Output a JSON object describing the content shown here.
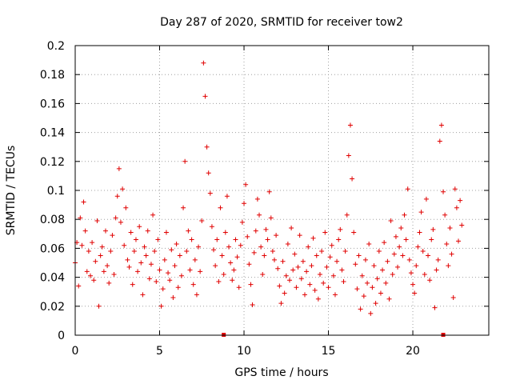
{
  "chart_data": {
    "type": "scatter",
    "title": "Day 287 of 2020, SRMTID for receiver tow2",
    "xlabel": "GPS time / hours",
    "ylabel": "SRMTID / TECUs",
    "xlim": [
      0,
      24.5
    ],
    "ylim": [
      0,
      0.2
    ],
    "x_ticks": [
      0,
      5,
      10,
      15,
      20
    ],
    "x_tick_labels": [
      "0",
      "5",
      "10",
      "15",
      "20"
    ],
    "y_ticks": [
      0,
      0.02,
      0.04,
      0.06,
      0.08,
      0.1,
      0.12,
      0.14,
      0.16,
      0.18,
      0.2
    ],
    "y_tick_labels": [
      "0",
      "0.02",
      "0.04",
      "0.06",
      "0.08",
      "0.1",
      "0.12",
      "0.14",
      "0.16",
      "0.18",
      "0.2"
    ],
    "grid": true,
    "marker": "plus",
    "color": "#e00000",
    "series": [
      {
        "name": "SRMTID tow2",
        "points": [
          [
            0.0,
            0.05
          ],
          [
            0.1,
            0.064
          ],
          [
            0.2,
            0.034
          ],
          [
            0.3,
            0.081
          ],
          [
            0.4,
            0.062
          ],
          [
            0.5,
            0.092
          ],
          [
            0.6,
            0.072
          ],
          [
            0.7,
            0.044
          ],
          [
            0.8,
            0.058
          ],
          [
            0.9,
            0.041
          ],
          [
            1.0,
            0.064
          ],
          [
            1.1,
            0.038
          ],
          [
            1.2,
            0.051
          ],
          [
            1.3,
            0.079
          ],
          [
            1.4,
            0.02
          ],
          [
            1.5,
            0.055
          ],
          [
            1.6,
            0.061
          ],
          [
            1.7,
            0.044
          ],
          [
            1.8,
            0.072
          ],
          [
            1.9,
            0.048
          ],
          [
            2.0,
            0.036
          ],
          [
            2.1,
            0.058
          ],
          [
            2.2,
            0.069
          ],
          [
            2.3,
            0.042
          ],
          [
            2.4,
            0.081
          ],
          [
            2.5,
            0.096
          ],
          [
            2.6,
            0.115
          ],
          [
            2.7,
            0.078
          ],
          [
            2.8,
            0.101
          ],
          [
            2.9,
            0.062
          ],
          [
            3.0,
            0.088
          ],
          [
            3.1,
            0.052
          ],
          [
            3.2,
            0.047
          ],
          [
            3.3,
            0.071
          ],
          [
            3.4,
            0.035
          ],
          [
            3.5,
            0.058
          ],
          [
            3.6,
            0.066
          ],
          [
            3.7,
            0.044
          ],
          [
            3.8,
            0.075
          ],
          [
            3.9,
            0.05
          ],
          [
            4.0,
            0.028
          ],
          [
            4.1,
            0.061
          ],
          [
            4.2,
            0.055
          ],
          [
            4.3,
            0.072
          ],
          [
            4.4,
            0.039
          ],
          [
            4.5,
            0.049
          ],
          [
            4.6,
            0.083
          ],
          [
            4.7,
            0.058
          ],
          [
            4.8,
            0.037
          ],
          [
            4.9,
            0.066
          ],
          [
            5.0,
            0.045
          ],
          [
            5.1,
            0.02
          ],
          [
            5.2,
            0.032
          ],
          [
            5.3,
            0.052
          ],
          [
            5.4,
            0.071
          ],
          [
            5.5,
            0.043
          ],
          [
            5.6,
            0.038
          ],
          [
            5.7,
            0.059
          ],
          [
            5.8,
            0.026
          ],
          [
            5.9,
            0.048
          ],
          [
            6.0,
            0.063
          ],
          [
            6.1,
            0.033
          ],
          [
            6.2,
            0.055
          ],
          [
            6.3,
            0.041
          ],
          [
            6.4,
            0.088
          ],
          [
            6.5,
            0.12
          ],
          [
            6.6,
            0.058
          ],
          [
            6.7,
            0.072
          ],
          [
            6.8,
            0.045
          ],
          [
            6.9,
            0.066
          ],
          [
            7.0,
            0.035
          ],
          [
            7.1,
            0.052
          ],
          [
            7.2,
            0.028
          ],
          [
            7.3,
            0.061
          ],
          [
            7.4,
            0.044
          ],
          [
            7.5,
            0.079
          ],
          [
            7.6,
            0.188
          ],
          [
            7.7,
            0.165
          ],
          [
            7.8,
            0.13
          ],
          [
            7.9,
            0.112
          ],
          [
            8.0,
            0.098
          ],
          [
            8.1,
            0.075
          ],
          [
            8.2,
            0.059
          ],
          [
            8.3,
            0.048
          ],
          [
            8.4,
            0.066
          ],
          [
            8.5,
            0.037
          ],
          [
            8.6,
            0.088
          ],
          [
            8.7,
            0.055
          ],
          [
            8.8,
            0.042
          ],
          [
            8.9,
            0.071
          ],
          [
            9.0,
            0.096
          ],
          [
            9.1,
            0.061
          ],
          [
            9.2,
            0.05
          ],
          [
            9.3,
            0.038
          ],
          [
            9.4,
            0.045
          ],
          [
            9.5,
            0.066
          ],
          [
            9.6,
            0.054
          ],
          [
            9.7,
            0.033
          ],
          [
            9.8,
            0.062
          ],
          [
            9.9,
            0.078
          ],
          [
            10.0,
            0.091
          ],
          [
            10.1,
            0.104
          ],
          [
            10.2,
            0.068
          ],
          [
            10.3,
            0.049
          ],
          [
            10.4,
            0.035
          ],
          [
            10.5,
            0.021
          ],
          [
            10.6,
            0.057
          ],
          [
            10.7,
            0.072
          ],
          [
            10.8,
            0.094
          ],
          [
            10.9,
            0.083
          ],
          [
            11.0,
            0.061
          ],
          [
            11.1,
            0.042
          ],
          [
            11.2,
            0.055
          ],
          [
            11.3,
            0.073
          ],
          [
            11.4,
            0.066
          ],
          [
            11.5,
            0.099
          ],
          [
            11.6,
            0.081
          ],
          [
            11.7,
            0.058
          ],
          [
            11.8,
            0.052
          ],
          [
            11.9,
            0.069
          ],
          [
            12.0,
            0.046
          ],
          [
            12.1,
            0.034
          ],
          [
            12.2,
            0.022
          ],
          [
            12.3,
            0.051
          ],
          [
            12.4,
            0.029
          ],
          [
            12.5,
            0.041
          ],
          [
            12.6,
            0.063
          ],
          [
            12.7,
            0.038
          ],
          [
            12.8,
            0.074
          ],
          [
            12.9,
            0.045
          ],
          [
            13.0,
            0.056
          ],
          [
            13.1,
            0.033
          ],
          [
            13.2,
            0.047
          ],
          [
            13.3,
            0.069
          ],
          [
            13.4,
            0.039
          ],
          [
            13.5,
            0.051
          ],
          [
            13.6,
            0.028
          ],
          [
            13.7,
            0.044
          ],
          [
            13.8,
            0.061
          ],
          [
            13.9,
            0.035
          ],
          [
            14.0,
            0.048
          ],
          [
            14.1,
            0.067
          ],
          [
            14.2,
            0.031
          ],
          [
            14.3,
            0.055
          ],
          [
            14.4,
            0.025
          ],
          [
            14.5,
            0.042
          ],
          [
            14.6,
            0.058
          ],
          [
            14.7,
            0.036
          ],
          [
            14.8,
            0.071
          ],
          [
            14.9,
            0.047
          ],
          [
            15.0,
            0.033
          ],
          [
            15.1,
            0.054
          ],
          [
            15.2,
            0.062
          ],
          [
            15.3,
            0.041
          ],
          [
            15.4,
            0.028
          ],
          [
            15.5,
            0.051
          ],
          [
            15.6,
            0.066
          ],
          [
            15.7,
            0.073
          ],
          [
            15.8,
            0.045
          ],
          [
            15.9,
            0.037
          ],
          [
            16.0,
            0.058
          ],
          [
            16.1,
            0.083
          ],
          [
            16.2,
            0.124
          ],
          [
            16.3,
            0.145
          ],
          [
            16.4,
            0.108
          ],
          [
            16.5,
            0.071
          ],
          [
            16.6,
            0.049
          ],
          [
            16.7,
            0.032
          ],
          [
            16.8,
            0.055
          ],
          [
            16.9,
            0.018
          ],
          [
            17.0,
            0.041
          ],
          [
            17.1,
            0.027
          ],
          [
            17.2,
            0.052
          ],
          [
            17.3,
            0.036
          ],
          [
            17.4,
            0.063
          ],
          [
            17.5,
            0.015
          ],
          [
            17.6,
            0.033
          ],
          [
            17.7,
            0.048
          ],
          [
            17.8,
            0.022
          ],
          [
            17.9,
            0.039
          ],
          [
            18.0,
            0.058
          ],
          [
            18.1,
            0.029
          ],
          [
            18.2,
            0.045
          ],
          [
            18.3,
            0.064
          ],
          [
            18.4,
            0.036
          ],
          [
            18.5,
            0.051
          ],
          [
            18.6,
            0.025
          ],
          [
            18.7,
            0.079
          ],
          [
            18.8,
            0.042
          ],
          [
            18.9,
            0.056
          ],
          [
            19.0,
            0.068
          ],
          [
            19.1,
            0.047
          ],
          [
            19.2,
            0.061
          ],
          [
            19.3,
            0.074
          ],
          [
            19.4,
            0.055
          ],
          [
            19.5,
            0.083
          ],
          [
            19.6,
            0.066
          ],
          [
            19.7,
            0.101
          ],
          [
            19.8,
            0.052
          ],
          [
            19.9,
            0.043
          ],
          [
            20.0,
            0.035
          ],
          [
            20.1,
            0.029
          ],
          [
            20.2,
            0.048
          ],
          [
            20.3,
            0.061
          ],
          [
            20.4,
            0.071
          ],
          [
            20.5,
            0.085
          ],
          [
            20.6,
            0.058
          ],
          [
            20.7,
            0.042
          ],
          [
            20.8,
            0.094
          ],
          [
            20.9,
            0.055
          ],
          [
            21.0,
            0.038
          ],
          [
            21.1,
            0.066
          ],
          [
            21.2,
            0.073
          ],
          [
            21.3,
            0.019
          ],
          [
            21.4,
            0.045
          ],
          [
            21.5,
            0.052
          ],
          [
            21.6,
            0.134
          ],
          [
            21.7,
            0.145
          ],
          [
            21.8,
            0.099
          ],
          [
            21.9,
            0.083
          ],
          [
            22.0,
            0.063
          ],
          [
            22.1,
            0.048
          ],
          [
            22.2,
            0.074
          ],
          [
            22.3,
            0.056
          ],
          [
            22.4,
            0.026
          ],
          [
            22.5,
            0.101
          ],
          [
            22.6,
            0.088
          ],
          [
            22.7,
            0.065
          ],
          [
            22.8,
            0.093
          ],
          [
            22.9,
            0.076
          ]
        ]
      }
    ],
    "gap_markers_x": [
      8.8,
      21.8
    ]
  }
}
